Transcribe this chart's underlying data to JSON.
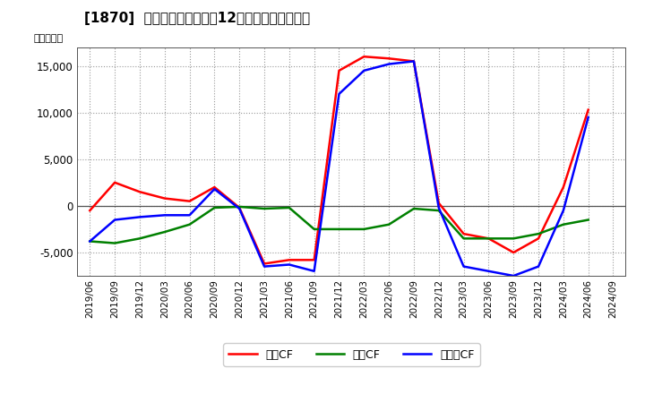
{
  "title": "[1870]  キャッシュフローの12か月移動合計の推移",
  "ylabel": "（百万円）",
  "background_color": "#ffffff",
  "plot_bg_color": "#ffffff",
  "grid_color": "#999999",
  "ylim": [
    -7500,
    17000
  ],
  "yticks": [
    -5000,
    0,
    5000,
    10000,
    15000
  ],
  "x_labels": [
    "2019/06",
    "2019/09",
    "2019/12",
    "2020/03",
    "2020/06",
    "2020/09",
    "2020/12",
    "2021/03",
    "2021/06",
    "2021/09",
    "2021/12",
    "2022/03",
    "2022/06",
    "2022/09",
    "2022/12",
    "2023/03",
    "2023/06",
    "2023/09",
    "2023/12",
    "2024/03",
    "2024/06",
    "2024/09"
  ],
  "operating_cf": {
    "label": "営業CF",
    "color": "#ff0000",
    "values": [
      -500,
      2500,
      1500,
      800,
      500,
      2000,
      -200,
      -6200,
      -5800,
      -5800,
      14500,
      16000,
      15800,
      15500,
      300,
      -3000,
      -3500,
      -5000,
      -3500,
      2000,
      10300,
      null
    ]
  },
  "investment_cf": {
    "label": "投資CF",
    "color": "#008000",
    "values": [
      -3800,
      -4000,
      -3500,
      -2800,
      -2000,
      -200,
      -100,
      -300,
      -200,
      -2500,
      -2500,
      -2500,
      -2000,
      -300,
      -500,
      -3500,
      -3500,
      -3500,
      -3000,
      -2000,
      -1500,
      null
    ]
  },
  "free_cf": {
    "label": "フリーCF",
    "color": "#0000ff",
    "values": [
      -3800,
      -1500,
      -1200,
      -1000,
      -1000,
      1800,
      -300,
      -6500,
      -6300,
      -7000,
      12000,
      14500,
      15200,
      15500,
      -200,
      -6500,
      -7000,
      -7500,
      -6500,
      -500,
      9500,
      null
    ]
  }
}
